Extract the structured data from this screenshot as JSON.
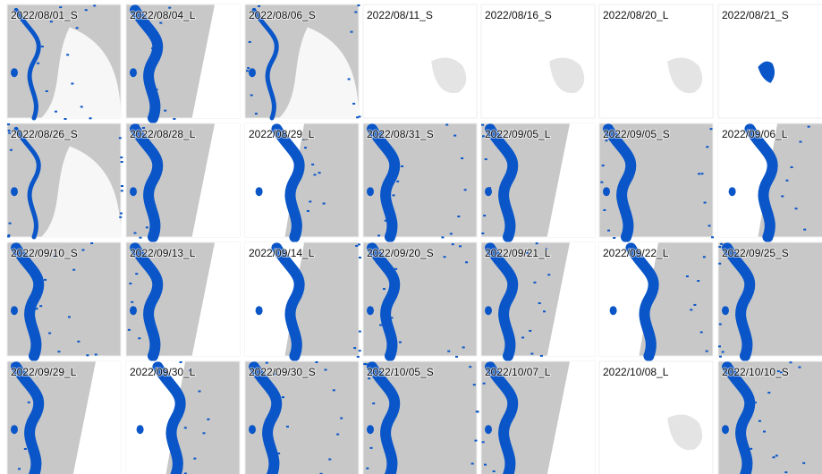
{
  "tiles": [
    {
      "label": "2022/08/01_S"
    },
    {
      "label": "2022/08/04_L"
    },
    {
      "label": "2022/08/06_S"
    },
    {
      "label": "2022/08/11_S"
    },
    {
      "label": "2022/08/16_S"
    },
    {
      "label": "2022/08/20_L"
    },
    {
      "label": "2022/08/21_S"
    },
    {
      "label": "2022/08/26_S"
    },
    {
      "label": "2022/08/28_L"
    },
    {
      "label": "2022/08/29_L"
    },
    {
      "label": "2022/08/31_S"
    },
    {
      "label": "2022/09/05_L"
    },
    {
      "label": "2022/09/05_S"
    },
    {
      "label": "2022/09/06_L"
    },
    {
      "label": "2022/09/10_S"
    },
    {
      "label": "2022/09/13_L"
    },
    {
      "label": "2022/09/14_L"
    },
    {
      "label": "2022/09/20_S"
    },
    {
      "label": "2022/09/21_L"
    },
    {
      "label": "2022/09/22_L"
    },
    {
      "label": "2022/09/25_S"
    },
    {
      "label": "2022/09/29_L"
    },
    {
      "label": "2022/09/30_L"
    },
    {
      "label": "2022/09/30_S"
    },
    {
      "label": "2022/10/05_S"
    },
    {
      "label": "2022/10/07_L"
    },
    {
      "label": "2022/10/08_L"
    },
    {
      "label": "2022/10/10_S"
    }
  ]
}
